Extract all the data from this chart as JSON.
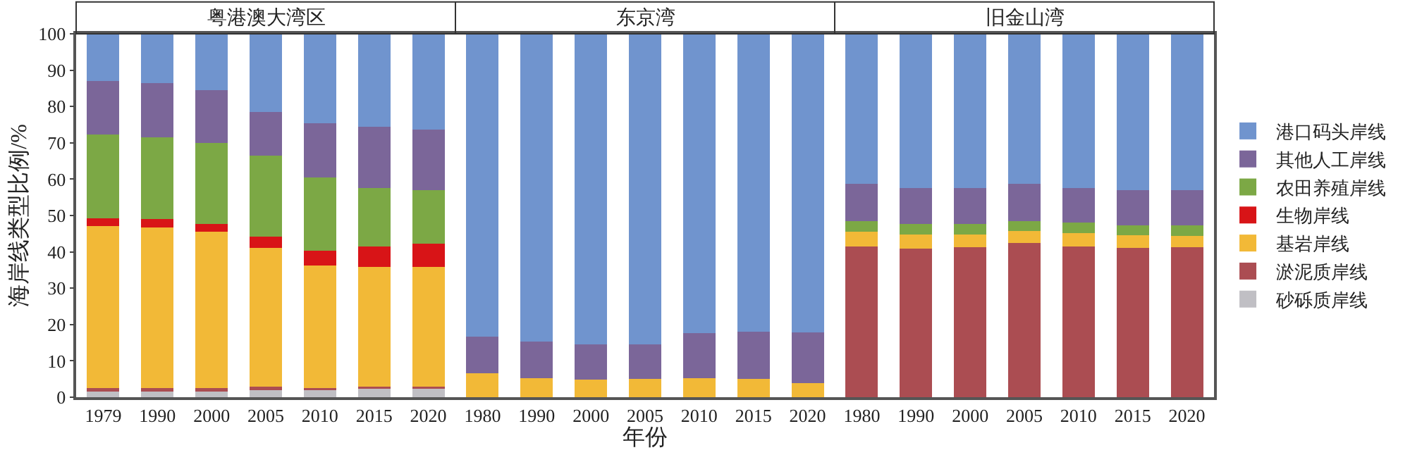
{
  "chart_data": {
    "type": "bar",
    "stacked": true,
    "ylabel": "海岸线类型比例/%",
    "xlabel": "年份",
    "annotations": [
      "粤港澳大湾区",
      "东京湾",
      "旧金山湾"
    ],
    "categories": [
      "1979",
      "1990",
      "2000",
      "2005",
      "2010",
      "2015",
      "2020",
      "1980",
      "1990",
      "2000",
      "2005",
      "2010",
      "2015",
      "2020",
      "1980",
      "1990",
      "2000",
      "2005",
      "2010",
      "2015",
      "2020"
    ],
    "series": [
      {
        "name": "砂砾质岸线",
        "color": "#c0bfc4",
        "values": [
          1.8,
          1.8,
          1.8,
          2.2,
          2.2,
          2.6,
          2.6,
          0,
          0,
          0,
          0,
          0,
          0,
          0,
          0,
          0,
          0,
          0,
          0,
          0,
          0
        ]
      },
      {
        "name": "淤泥质岸线",
        "color": "#ab4d52",
        "values": [
          0.7,
          0.7,
          0.7,
          0.7,
          0.3,
          0.4,
          0.4,
          0,
          0,
          0,
          0,
          0,
          0,
          0,
          41.5,
          40.8,
          41.2,
          42.4,
          41.5,
          41.0,
          41.2
        ]
      },
      {
        "name": "基岩岸线",
        "color": "#f2b937",
        "values": [
          44.5,
          44.3,
          43.0,
          38.1,
          33.8,
          32.8,
          32.8,
          6.6,
          5.3,
          4.8,
          5.0,
          5.3,
          5.0,
          3.8,
          4.0,
          3.9,
          3.5,
          3.4,
          3.7,
          3.5,
          3.2
        ]
      },
      {
        "name": "生物岸线",
        "color": "#d81417",
        "values": [
          2.3,
          2.2,
          2.2,
          3.2,
          4.1,
          5.6,
          6.5,
          0,
          0,
          0,
          0,
          0,
          0,
          0,
          0,
          0,
          0,
          0,
          0,
          0,
          0
        ]
      },
      {
        "name": "农田养殖岸线",
        "color": "#7ca845",
        "values": [
          22.9,
          22.5,
          22.3,
          22.3,
          20.0,
          16.2,
          14.7,
          0,
          0,
          0,
          0,
          0,
          0,
          0,
          3.0,
          2.9,
          2.9,
          2.7,
          2.8,
          2.8,
          2.8
        ]
      },
      {
        "name": "其他人工岸线",
        "color": "#7b6699",
        "values": [
          14.8,
          15.0,
          14.5,
          12.0,
          15.0,
          16.8,
          16.6,
          10.1,
          10.1,
          9.8,
          9.6,
          12.4,
          13.1,
          14.1,
          10.3,
          10.0,
          10.0,
          10.2,
          9.6,
          9.6,
          9.7
        ]
      },
      {
        "name": "港口码头岸线",
        "color": "#7094ce",
        "values": [
          13.0,
          13.5,
          15.5,
          21.5,
          24.6,
          25.6,
          26.4,
          83.3,
          84.6,
          85.4,
          85.4,
          82.3,
          81.9,
          82.1,
          41.2,
          42.4,
          42.4,
          41.3,
          42.4,
          43.1,
          43.1
        ]
      }
    ],
    "ylim": [
      0,
      100
    ],
    "yticks": [
      0,
      10,
      20,
      30,
      40,
      50,
      60,
      70,
      80,
      90,
      100
    ],
    "legend": "right"
  }
}
